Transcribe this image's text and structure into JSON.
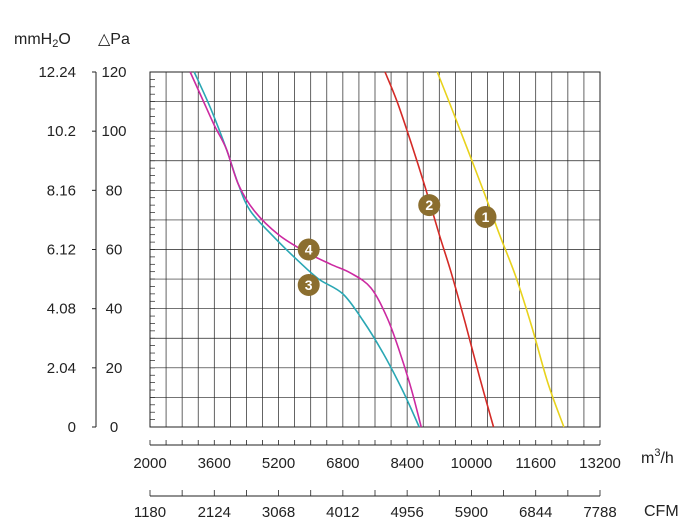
{
  "chart_data": {
    "type": "line",
    "title": "",
    "units": {
      "pressure_left": "mmH",
      "pressure_left_sub": "2",
      "pressure_left_tail": "O",
      "pressure_right": "△Pa",
      "flow_top": "m",
      "flow_top_sup": "3",
      "flow_top_tail": "/h",
      "flow_bottom": "CFM"
    },
    "y_ticks_pa": [
      "0",
      "20",
      "40",
      "60",
      "80",
      "100",
      "120"
    ],
    "y_ticks_mmh2o": [
      "0",
      "2.04",
      "4.08",
      "6.12",
      "8.16",
      "10.2",
      "12.24"
    ],
    "x_ticks_m3h": [
      "2000",
      "3600",
      "5200",
      "6800",
      "8400",
      "10000",
      "11600",
      "13200"
    ],
    "x_ticks_cfm": [
      "1180",
      "2124",
      "3068",
      "4012",
      "4956",
      "5900",
      "6844",
      "7788"
    ],
    "xlim": [
      2000,
      13200
    ],
    "ylim": [
      0,
      120
    ],
    "grid": true,
    "series": [
      {
        "name": "1",
        "color": "#e8d21c",
        "label_at": [
          10350,
          71
        ],
        "x": [
          9150,
          9500,
          9900,
          10350,
          10700,
          11100,
          11500,
          11900,
          12300
        ],
        "y": [
          120,
          108,
          94,
          78,
          65,
          51,
          34,
          15,
          0
        ]
      },
      {
        "name": "2",
        "color": "#d42a26",
        "label_at": [
          8950,
          75
        ],
        "x": [
          7850,
          8150,
          8500,
          8850,
          9200,
          9500,
          9850,
          10200,
          10550
        ],
        "y": [
          120,
          110,
          96,
          81,
          65,
          52,
          35,
          17,
          0
        ]
      },
      {
        "name": "3",
        "color": "#2aa7b4",
        "label_at": [
          5950,
          48
        ],
        "x": [
          3100,
          3500,
          3900,
          4200,
          4500,
          5100,
          5700,
          6200,
          6800,
          7300,
          7800,
          8300,
          8700
        ],
        "y": [
          120,
          108,
          94,
          82,
          73,
          64,
          56,
          50,
          45,
          36,
          25,
          12,
          0
        ]
      },
      {
        "name": "4",
        "color": "#cc2aa1",
        "label_at": [
          5950,
          60
        ],
        "x": [
          3000,
          3300,
          3600,
          3900,
          4200,
          4600,
          5200,
          5900,
          6500,
          7000,
          7500,
          7900,
          8200,
          8500,
          8750
        ],
        "y": [
          120,
          111,
          102,
          94,
          82,
          73,
          65,
          59,
          55,
          52,
          47,
          37,
          26,
          13,
          0
        ]
      }
    ]
  }
}
